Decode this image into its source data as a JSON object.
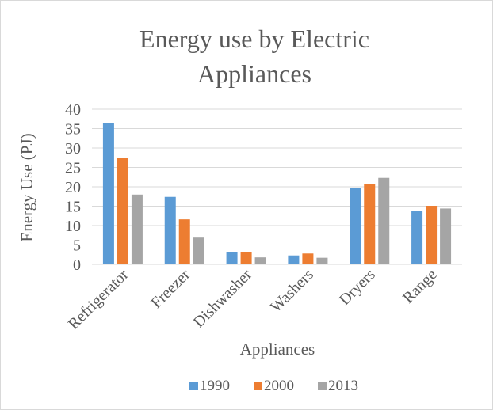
{
  "chart_data": {
    "type": "bar",
    "title_lines": [
      "Energy use by Electric",
      "Appliances"
    ],
    "xlabel": "Appliances",
    "ylabel": "Energy Use (PJ)",
    "ylim": [
      0,
      40
    ],
    "yticks": [
      "0",
      "5",
      "10",
      "15",
      "20",
      "25",
      "30",
      "35",
      "40"
    ],
    "grid": true,
    "legend_position": "bottom",
    "categories": [
      "Refrigerator",
      "Freezer",
      "Dishwasher",
      "Washers",
      "Dryers",
      "Range"
    ],
    "series": [
      {
        "name": "1990",
        "color": "#5b9bd5",
        "values": [
          36.5,
          17.4,
          3.2,
          2.3,
          19.6,
          13.8
        ]
      },
      {
        "name": "2000",
        "color": "#ed7d31",
        "values": [
          27.5,
          11.6,
          3.1,
          2.8,
          20.8,
          15.1
        ]
      },
      {
        "name": "2013",
        "color": "#a5a5a5",
        "values": [
          18.0,
          6.9,
          1.8,
          1.7,
          22.3,
          14.4
        ]
      }
    ]
  }
}
